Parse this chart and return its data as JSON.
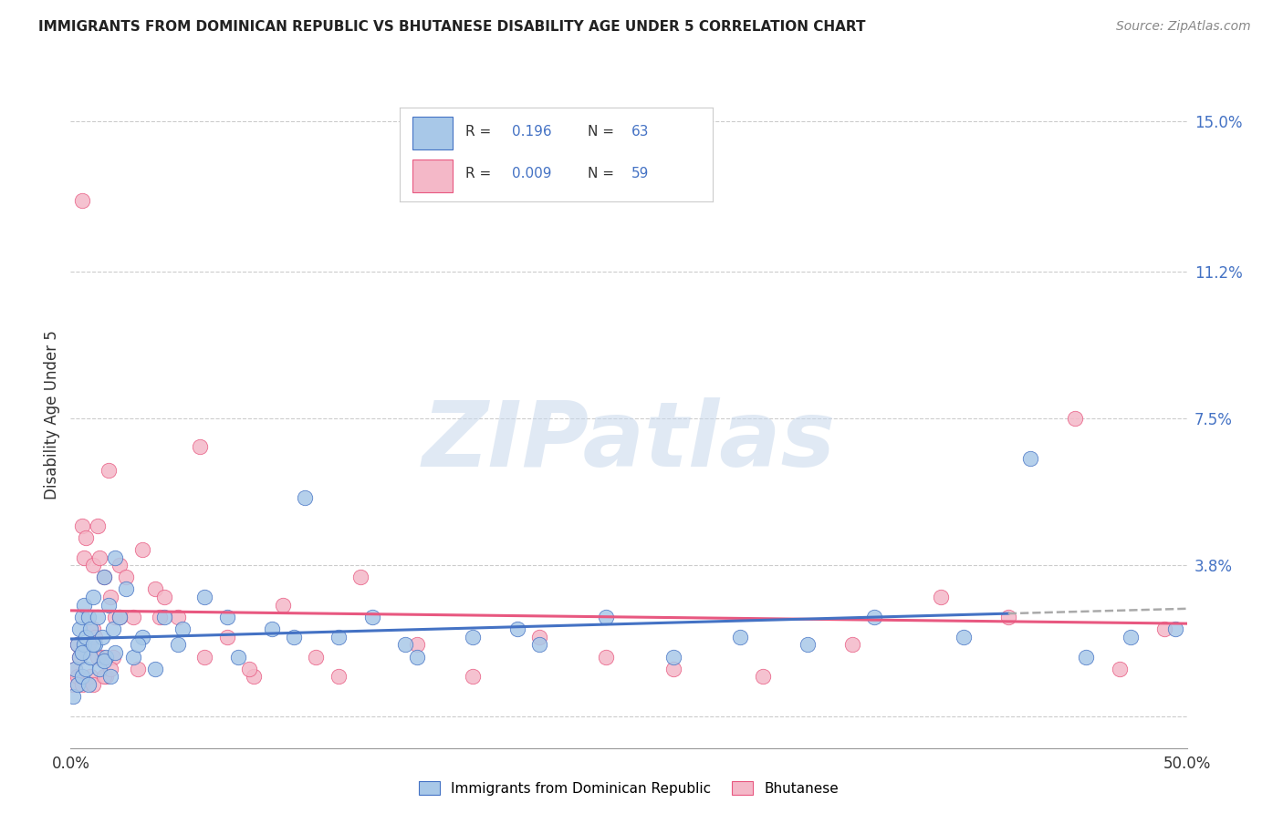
{
  "title": "IMMIGRANTS FROM DOMINICAN REPUBLIC VS BHUTANESE DISABILITY AGE UNDER 5 CORRELATION CHART",
  "source": "Source: ZipAtlas.com",
  "ylabel": "Disability Age Under 5",
  "xlim": [
    0.0,
    0.5
  ],
  "ylim": [
    -0.008,
    0.16
  ],
  "ytick_vals": [
    0.0,
    0.038,
    0.075,
    0.112,
    0.15
  ],
  "xtick_vals": [
    0.0,
    0.5
  ],
  "xtick_labels": [
    "0.0%",
    "50.0%"
  ],
  "ytick_labels": [
    "0.0%",
    "3.8%",
    "7.5%",
    "11.2%",
    "15.0%"
  ],
  "series1_color": "#a8c8e8",
  "series2_color": "#f4b8c8",
  "trendline1_color": "#4472c4",
  "trendline2_color": "#e85880",
  "trendline1_R": 0.196,
  "trendline1_N": 63,
  "trendline2_R": 0.009,
  "trendline2_N": 59,
  "watermark_text": "ZIPatlas",
  "legend_label1": "Immigrants from Dominican Republic",
  "legend_label2": "Bhutanese",
  "scatter1_x": [
    0.001,
    0.002,
    0.003,
    0.003,
    0.004,
    0.004,
    0.005,
    0.005,
    0.006,
    0.006,
    0.007,
    0.007,
    0.008,
    0.008,
    0.009,
    0.009,
    0.01,
    0.011,
    0.012,
    0.013,
    0.014,
    0.015,
    0.016,
    0.017,
    0.018,
    0.019,
    0.02,
    0.022,
    0.025,
    0.028,
    0.032,
    0.038,
    0.042,
    0.048,
    0.06,
    0.075,
    0.09,
    0.105,
    0.12,
    0.135,
    0.155,
    0.18,
    0.21,
    0.24,
    0.27,
    0.3,
    0.33,
    0.36,
    0.4,
    0.43,
    0.455,
    0.475,
    0.495,
    0.005,
    0.01,
    0.015,
    0.02,
    0.03,
    0.05,
    0.07,
    0.1,
    0.15,
    0.2
  ],
  "scatter1_y": [
    0.005,
    0.012,
    0.018,
    0.008,
    0.022,
    0.015,
    0.025,
    0.01,
    0.028,
    0.018,
    0.02,
    0.012,
    0.025,
    0.008,
    0.022,
    0.015,
    0.03,
    0.018,
    0.025,
    0.012,
    0.02,
    0.035,
    0.015,
    0.028,
    0.01,
    0.022,
    0.04,
    0.025,
    0.032,
    0.015,
    0.02,
    0.012,
    0.025,
    0.018,
    0.03,
    0.015,
    0.022,
    0.055,
    0.02,
    0.025,
    0.015,
    0.02,
    0.018,
    0.025,
    0.015,
    0.02,
    0.018,
    0.025,
    0.02,
    0.065,
    0.015,
    0.02,
    0.022,
    0.016,
    0.018,
    0.014,
    0.016,
    0.018,
    0.022,
    0.025,
    0.02,
    0.018,
    0.022
  ],
  "scatter2_x": [
    0.001,
    0.002,
    0.003,
    0.003,
    0.004,
    0.005,
    0.005,
    0.006,
    0.007,
    0.008,
    0.009,
    0.01,
    0.01,
    0.011,
    0.012,
    0.013,
    0.014,
    0.015,
    0.016,
    0.017,
    0.018,
    0.019,
    0.02,
    0.022,
    0.025,
    0.028,
    0.032,
    0.038,
    0.042,
    0.048,
    0.058,
    0.07,
    0.082,
    0.095,
    0.11,
    0.13,
    0.155,
    0.18,
    0.21,
    0.24,
    0.27,
    0.31,
    0.35,
    0.39,
    0.42,
    0.45,
    0.47,
    0.49,
    0.005,
    0.01,
    0.012,
    0.015,
    0.018,
    0.022,
    0.03,
    0.04,
    0.06,
    0.08,
    0.12
  ],
  "scatter2_y": [
    0.008,
    0.012,
    0.01,
    0.018,
    0.015,
    0.048,
    0.008,
    0.04,
    0.045,
    0.018,
    0.01,
    0.038,
    0.022,
    0.02,
    0.048,
    0.04,
    0.015,
    0.035,
    0.01,
    0.062,
    0.03,
    0.015,
    0.025,
    0.038,
    0.035,
    0.025,
    0.042,
    0.032,
    0.03,
    0.025,
    0.068,
    0.02,
    0.01,
    0.028,
    0.015,
    0.035,
    0.018,
    0.01,
    0.02,
    0.015,
    0.012,
    0.01,
    0.018,
    0.03,
    0.025,
    0.075,
    0.012,
    0.022,
    0.13,
    0.008,
    0.015,
    0.01,
    0.012,
    0.025,
    0.012,
    0.025,
    0.015,
    0.012,
    0.01
  ]
}
